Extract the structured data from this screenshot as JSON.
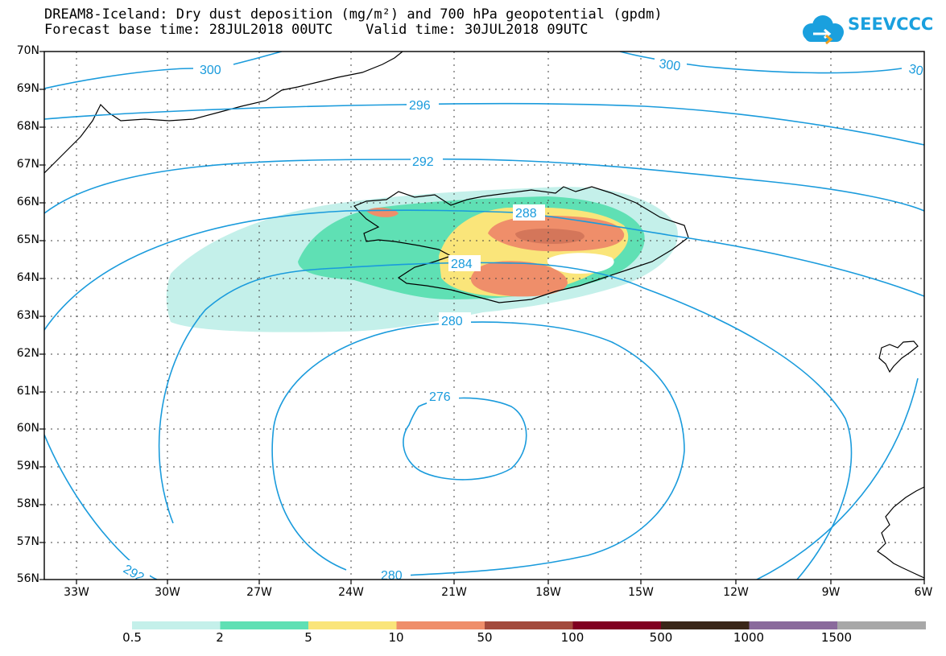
{
  "header": {
    "title_line1": "DREAM8-Iceland: Dry dust deposition (mg/m²) and 700 hPa geopotential (gpdm)",
    "title_line2": "Forecast base time: 28JUL2018 00UTC    Valid time: 30JUL2018 09UTC"
  },
  "logo": {
    "text": "SEEVCCC",
    "icon": "cloud-icon",
    "color": "#1aa0de"
  },
  "map": {
    "lat_labels": [
      "70N",
      "69N",
      "68N",
      "67N",
      "66N",
      "65N",
      "64N",
      "63N",
      "62N",
      "61N",
      "60N",
      "59N",
      "58N",
      "57N",
      "56N"
    ],
    "lon_labels": [
      "33W",
      "30W",
      "27W",
      "24W",
      "21W",
      "18W",
      "15W",
      "12W",
      "9W",
      "6W"
    ],
    "contour_color": "#1a9bdc",
    "contour_labels": [
      "300",
      "300",
      "30",
      "296",
      "292",
      "288",
      "284",
      "280",
      "276",
      "292",
      "280"
    ]
  },
  "colorbar": {
    "colors": [
      "#c4f0ea",
      "#5fe0b4",
      "#fae57a",
      "#ef8e6a",
      "#a34a3c",
      "#800020",
      "#3a2618",
      "#8a6a9c",
      "#a8a8a8"
    ],
    "labels": [
      "0.5",
      "2",
      "5",
      "10",
      "50",
      "100",
      "500",
      "1000",
      "1500"
    ]
  }
}
